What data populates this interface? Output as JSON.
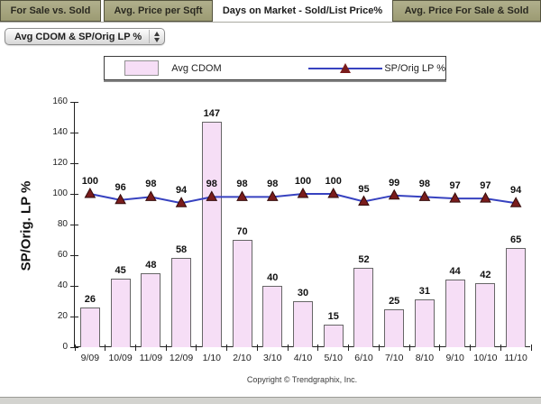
{
  "tabs": [
    {
      "label": "For Sale vs. Sold",
      "active": false
    },
    {
      "label": "Avg. Price per Sqft",
      "active": false
    },
    {
      "label": "Days on Market - Sold/List Price%",
      "active": true
    },
    {
      "label": "Avg. Price For Sale & Sold",
      "active": false
    }
  ],
  "dropdown": {
    "value": "Avg CDOM & SP/Orig LP %"
  },
  "legend": {
    "items": [
      {
        "label": "Avg CDOM",
        "marker": "pink-bar-swatch"
      },
      {
        "label": "SP/Orig LP %",
        "marker": "blue-line-red-triangle"
      }
    ]
  },
  "chart_data": {
    "type": "bar",
    "subtype": "bar+line combo",
    "categories": [
      "9/09",
      "10/09",
      "11/09",
      "12/09",
      "1/10",
      "2/10",
      "3/10",
      "4/10",
      "5/10",
      "6/10",
      "7/10",
      "8/10",
      "9/10",
      "10/10",
      "11/10"
    ],
    "series": [
      {
        "name": "Avg CDOM",
        "type": "bar",
        "values": [
          26,
          45,
          48,
          58,
          147,
          70,
          40,
          30,
          15,
          52,
          25,
          31,
          44,
          42,
          65
        ]
      },
      {
        "name": "SP/Orig LP %",
        "type": "line",
        "values": [
          100,
          96,
          98,
          94,
          98,
          98,
          98,
          100,
          100,
          95,
          99,
          98,
          97,
          97,
          94
        ]
      }
    ],
    "title": "",
    "xlabel": "",
    "ylabel": "SP/Orig. LP %",
    "ylim": [
      0,
      160
    ],
    "yticks": [
      0,
      20,
      40,
      60,
      80,
      100,
      120,
      140,
      160
    ],
    "grid": false,
    "legend_position": "top-center",
    "colors": {
      "bar_fill": "#f6def6",
      "bar_border": "#666666",
      "line": "#3742c0",
      "marker": "#7a1c1c",
      "tab_inactive": "#a4a37b",
      "axis": "#222222"
    }
  },
  "copyright": "Copyright © Trendgraphix, Inc."
}
